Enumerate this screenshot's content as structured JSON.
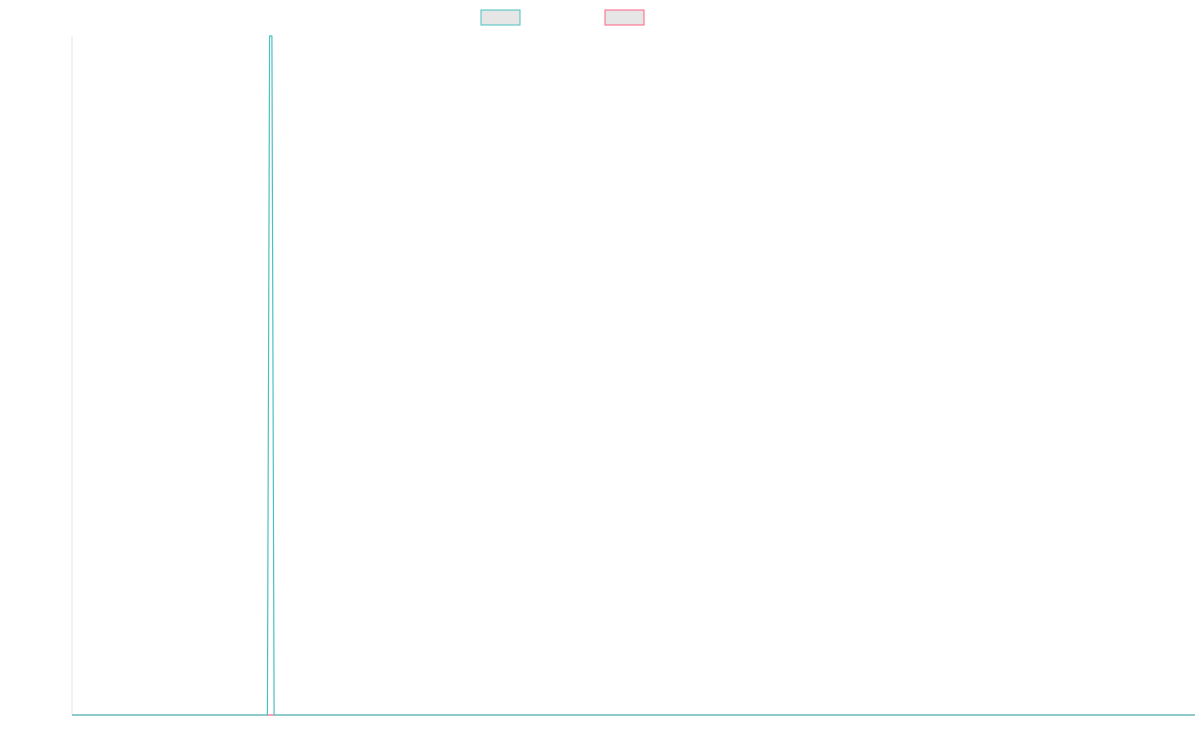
{
  "chart_data": {
    "type": "line",
    "title": "",
    "xlabel": "",
    "ylabel": "",
    "grid": false,
    "legend_position": "top-center",
    "xlim": [
      0,
      100
    ],
    "ylim": [
      0,
      1
    ],
    "series": [
      {
        "color": "#4bc0c0",
        "fill": "#e6e6e6",
        "x": [
          0,
          17.4,
          17.6,
          17.8,
          18.0,
          100
        ],
        "y": [
          0,
          0,
          1,
          1,
          0,
          0
        ]
      },
      {
        "color": "#ff6384",
        "fill": "#e6e6e6",
        "x": [
          0,
          100
        ],
        "y": [
          0,
          0
        ]
      }
    ]
  }
}
